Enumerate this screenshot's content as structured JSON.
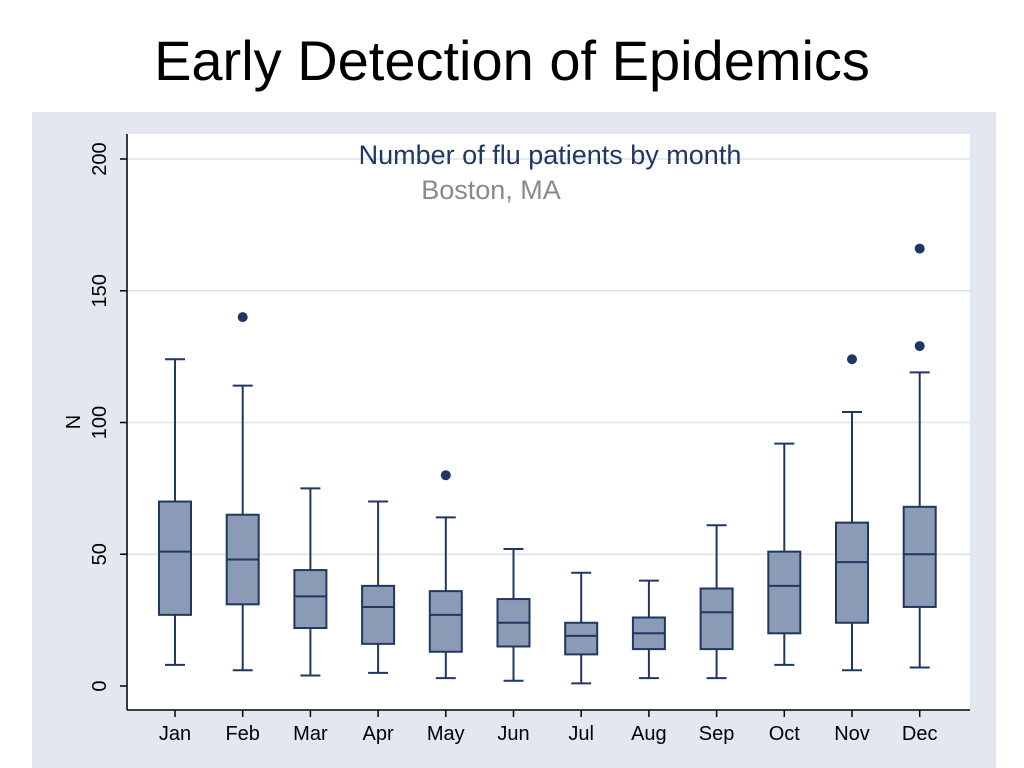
{
  "slide": {
    "title": "Early Detection of Epidemics"
  },
  "chart_data": {
    "type": "box",
    "title": "Number of flu patients by month",
    "subtitle": "Boston, MA",
    "xlabel": "",
    "ylabel": "N",
    "ylim": [
      0,
      200
    ],
    "yticks": [
      "0",
      "50",
      "100",
      "150",
      "200"
    ],
    "grid": true,
    "categories": [
      "Jan",
      "Feb",
      "Mar",
      "Apr",
      "May",
      "Jun",
      "Jul",
      "Aug",
      "Sep",
      "Oct",
      "Nov",
      "Dec"
    ],
    "boxes": [
      {
        "whisker_low": 8,
        "q1": 27,
        "median": 51,
        "q3": 70,
        "whisker_high": 124,
        "outliers": []
      },
      {
        "whisker_low": 6,
        "q1": 31,
        "median": 48,
        "q3": 65,
        "whisker_high": 114,
        "outliers": [
          140
        ]
      },
      {
        "whisker_low": 4,
        "q1": 22,
        "median": 34,
        "q3": 44,
        "whisker_high": 75,
        "outliers": []
      },
      {
        "whisker_low": 5,
        "q1": 16,
        "median": 30,
        "q3": 38,
        "whisker_high": 70,
        "outliers": []
      },
      {
        "whisker_low": 3,
        "q1": 13,
        "median": 27,
        "q3": 36,
        "whisker_high": 64,
        "outliers": [
          80
        ]
      },
      {
        "whisker_low": 2,
        "q1": 15,
        "median": 24,
        "q3": 33,
        "whisker_high": 52,
        "outliers": []
      },
      {
        "whisker_low": 1,
        "q1": 12,
        "median": 19,
        "q3": 24,
        "whisker_high": 43,
        "outliers": []
      },
      {
        "whisker_low": 3,
        "q1": 14,
        "median": 20,
        "q3": 26,
        "whisker_high": 40,
        "outliers": []
      },
      {
        "whisker_low": 3,
        "q1": 14,
        "median": 28,
        "q3": 37,
        "whisker_high": 61,
        "outliers": []
      },
      {
        "whisker_low": 8,
        "q1": 20,
        "median": 38,
        "q3": 51,
        "whisker_high": 92,
        "outliers": []
      },
      {
        "whisker_low": 6,
        "q1": 24,
        "median": 47,
        "q3": 62,
        "whisker_high": 104,
        "outliers": [
          124
        ]
      },
      {
        "whisker_low": 7,
        "q1": 30,
        "median": 50,
        "q3": 68,
        "whisker_high": 119,
        "outliers": [
          129,
          166
        ]
      }
    ],
    "colors": {
      "box_fill": "#8b9ab5",
      "box_stroke": "#1f3763",
      "outlier": "#1f3763",
      "grid": "#dde3ec",
      "frame_bg": "#e2e7f0",
      "plot_bg": "#ffffff"
    }
  }
}
